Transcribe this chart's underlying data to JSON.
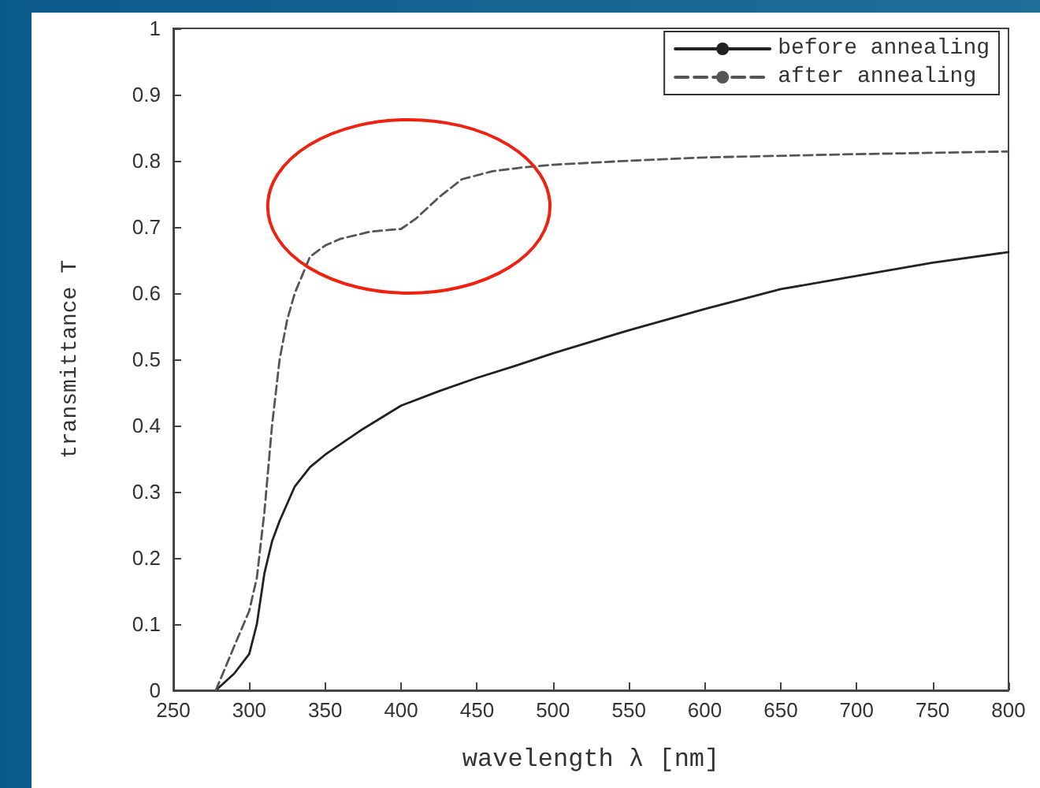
{
  "chart_data": {
    "type": "line",
    "xlabel": "wavelength λ [nm]",
    "ylabel": "transmittance T",
    "xlim": [
      250,
      800
    ],
    "xticks": [
      250,
      300,
      350,
      400,
      450,
      500,
      550,
      600,
      650,
      700,
      750,
      800
    ],
    "ylim": [
      0,
      1
    ],
    "yticks": [
      0,
      0.1,
      0.2,
      0.3,
      0.4,
      0.5,
      0.6,
      0.7,
      0.8,
      0.9,
      1
    ],
    "grid": false,
    "legend": "top right",
    "marker": "none",
    "series": [
      {
        "name": "before annealing",
        "color": "#222222",
        "line_style": "solid",
        "x": [
          278,
          290,
          300,
          305,
          310,
          315,
          320,
          330,
          340,
          350,
          375,
          400,
          425,
          450,
          475,
          500,
          550,
          600,
          650,
          700,
          750,
          800
        ],
        "values": [
          0,
          0.025,
          0.055,
          0.1,
          0.177,
          0.225,
          0.256,
          0.308,
          0.337,
          0.356,
          0.395,
          0.43,
          0.452,
          0.472,
          0.49,
          0.509,
          0.544,
          0.576,
          0.606,
          0.626,
          0.646,
          0.662
        ]
      },
      {
        "name": "after annealing",
        "color": "#555555",
        "line_style": "dashed",
        "x": [
          278,
          290,
          300,
          305,
          310,
          315,
          320,
          325,
          330,
          340,
          350,
          360,
          380,
          400,
          410,
          425,
          440,
          460,
          480,
          500,
          550,
          600,
          700,
          800
        ],
        "values": [
          0,
          0.066,
          0.12,
          0.17,
          0.27,
          0.4,
          0.5,
          0.56,
          0.6,
          0.655,
          0.672,
          0.682,
          0.693,
          0.697,
          0.713,
          0.745,
          0.772,
          0.784,
          0.79,
          0.794,
          0.8,
          0.805,
          0.81,
          0.814
        ]
      }
    ]
  }
}
